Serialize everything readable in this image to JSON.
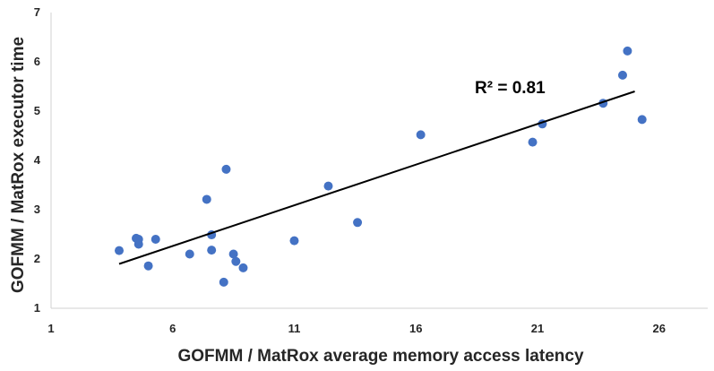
{
  "chart_data": {
    "type": "scatter",
    "title": "",
    "xlabel": "GOFMM / MatRox average memory access latency",
    "ylabel": "GOFMM / MatRox executor time",
    "xlim": [
      1,
      28
    ],
    "ylim": [
      1,
      7
    ],
    "x_ticks": [
      1,
      6,
      11,
      16,
      21,
      26
    ],
    "y_ticks": [
      1,
      2,
      3,
      4,
      5,
      6,
      7
    ],
    "grid": false,
    "legend": "none",
    "marker_color": "#4472C4",
    "trendline_color": "#000000",
    "annotation": "R² = 0.81",
    "trendline": {
      "x": [
        3.8,
        25
      ],
      "y": [
        1.9,
        5.4
      ]
    },
    "points": [
      {
        "x": 3.8,
        "y": 2.17
      },
      {
        "x": 4.5,
        "y": 2.42
      },
      {
        "x": 4.6,
        "y": 2.3
      },
      {
        "x": 4.6,
        "y": 2.4
      },
      {
        "x": 5.0,
        "y": 1.86
      },
      {
        "x": 5.3,
        "y": 2.4
      },
      {
        "x": 6.7,
        "y": 2.1
      },
      {
        "x": 7.4,
        "y": 3.21
      },
      {
        "x": 7.6,
        "y": 2.49
      },
      {
        "x": 7.6,
        "y": 2.18
      },
      {
        "x": 8.1,
        "y": 1.53
      },
      {
        "x": 8.2,
        "y": 3.82
      },
      {
        "x": 8.5,
        "y": 2.1
      },
      {
        "x": 8.6,
        "y": 1.95
      },
      {
        "x": 8.9,
        "y": 1.82
      },
      {
        "x": 11.0,
        "y": 2.37
      },
      {
        "x": 12.4,
        "y": 3.48
      },
      {
        "x": 13.6,
        "y": 2.74
      },
      {
        "x": 16.2,
        "y": 4.52
      },
      {
        "x": 20.8,
        "y": 4.37
      },
      {
        "x": 21.2,
        "y": 4.74
      },
      {
        "x": 23.7,
        "y": 5.16
      },
      {
        "x": 24.5,
        "y": 5.73
      },
      {
        "x": 24.7,
        "y": 6.22
      },
      {
        "x": 25.3,
        "y": 4.83
      }
    ]
  }
}
